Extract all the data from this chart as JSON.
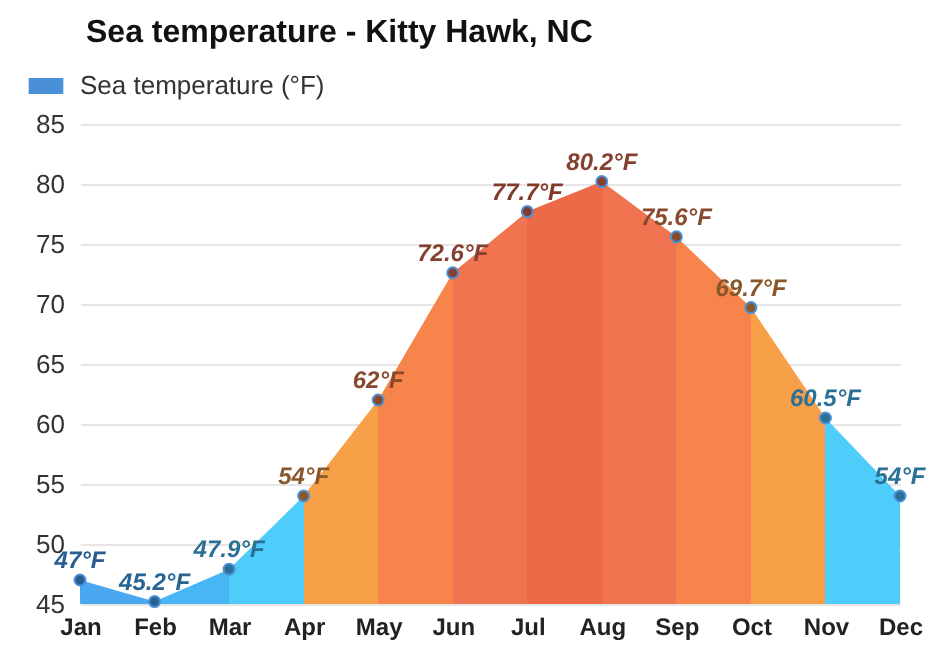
{
  "chart_data": {
    "type": "area",
    "title": "Sea temperature - Kitty Hawk, NC",
    "categories": [
      "Jan",
      "Feb",
      "Mar",
      "Apr",
      "May",
      "Jun",
      "Jul",
      "Aug",
      "Sep",
      "Oct",
      "Nov",
      "Dec"
    ],
    "series": [
      {
        "name": "Sea temperature (°F)",
        "color": "#4a90d9",
        "values": [
          47,
          45.2,
          47.9,
          54,
          62,
          72.6,
          77.7,
          80.2,
          75.6,
          69.7,
          60.5,
          54
        ],
        "colors": [
          "#4aa8f0",
          "#48b6f5",
          "#4fcdfa",
          "#f8a048",
          "#f7844a",
          "#f07450",
          "#ec6a48",
          "#f07450",
          "#f7844a",
          "#f8a048",
          "#4fcdfa",
          "#4fcdfa"
        ],
        "value_labels": [
          "47°F",
          "45.2°F",
          "47.9°F",
          "54°F",
          "62°F",
          "72.6°F",
          "77.7°F",
          "80.2°F",
          "75.6°F",
          "69.7°F",
          "60.5°F",
          "54°F"
        ]
      }
    ],
    "ylim": [
      45,
      85
    ],
    "yticks": [
      45,
      50,
      55,
      60,
      65,
      70,
      75,
      80,
      85
    ],
    "grid": "y",
    "legend": "top left",
    "marker": "circle"
  }
}
